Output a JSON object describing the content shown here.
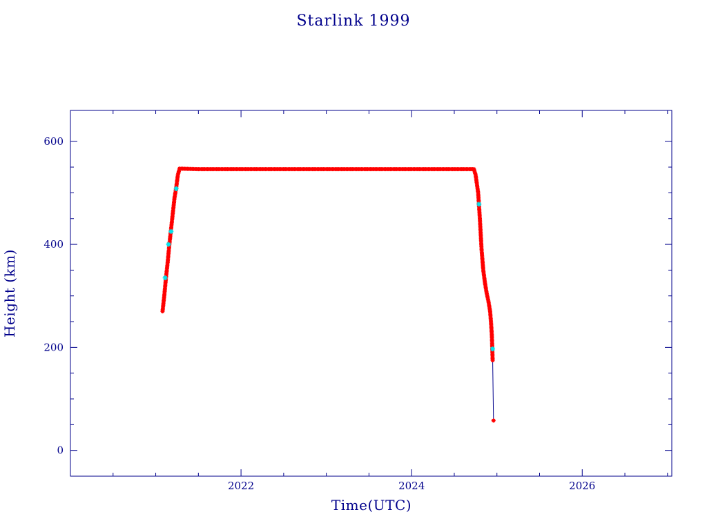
{
  "chart_data": {
    "type": "scatter",
    "title": "Starlink 1999",
    "xlabel": "Time(UTC)",
    "ylabel": "Height (km)",
    "xlim": [
      2020.0,
      2027.05
    ],
    "ylim": [
      -50,
      660
    ],
    "x_major_ticks": [
      2022,
      2024,
      2026
    ],
    "x_tick_labels": [
      "2022",
      "2024",
      "2026"
    ],
    "x_minor_ticks": [
      2020.5,
      2021,
      2021.5,
      2022.5,
      2023,
      2023.5,
      2024.5,
      2025,
      2025.5,
      2026.5,
      2027
    ],
    "y_major_ticks": [
      0,
      200,
      400,
      600
    ],
    "y_tick_labels": [
      "0",
      "200",
      "400",
      "600"
    ],
    "y_minor_ticks": [
      50,
      100,
      150,
      250,
      300,
      350,
      450,
      500,
      550
    ],
    "grid": false,
    "colors": {
      "axes": "#00008b",
      "text": "#00008b",
      "points": "#ff0000",
      "highlight_points": "#00e5ee",
      "line": "#00008b"
    },
    "series": [
      {
        "marker": "asterisk",
        "color": "#ff0000",
        "x": [
          2021.08,
          2021.1,
          2021.12,
          2021.14,
          2021.16,
          2021.18,
          2021.2,
          2021.22,
          2021.24,
          2021.26,
          2021.28,
          2021.5,
          2022.0,
          2022.5,
          2023.0,
          2023.5,
          2024.0,
          2024.5,
          2024.73,
          2024.75,
          2024.78,
          2024.8,
          2024.82,
          2024.84,
          2024.86,
          2024.88,
          2024.9,
          2024.92,
          2024.93,
          2024.94,
          2024.95,
          2024.96
        ],
        "y": [
          270,
          300,
          335,
          365,
          400,
          430,
          460,
          490,
          510,
          535,
          547,
          546,
          546,
          546,
          546,
          546,
          546,
          546,
          546,
          535,
          500,
          450,
          390,
          350,
          325,
          305,
          290,
          270,
          250,
          225,
          175,
          58
        ]
      },
      {
        "marker": "cross",
        "color": "#00e5ee",
        "x": [
          2021.11,
          2021.15,
          2021.18,
          2021.24,
          2024.79,
          2024.95
        ],
        "y": [
          335,
          400,
          425,
          508,
          478,
          197
        ]
      }
    ]
  }
}
